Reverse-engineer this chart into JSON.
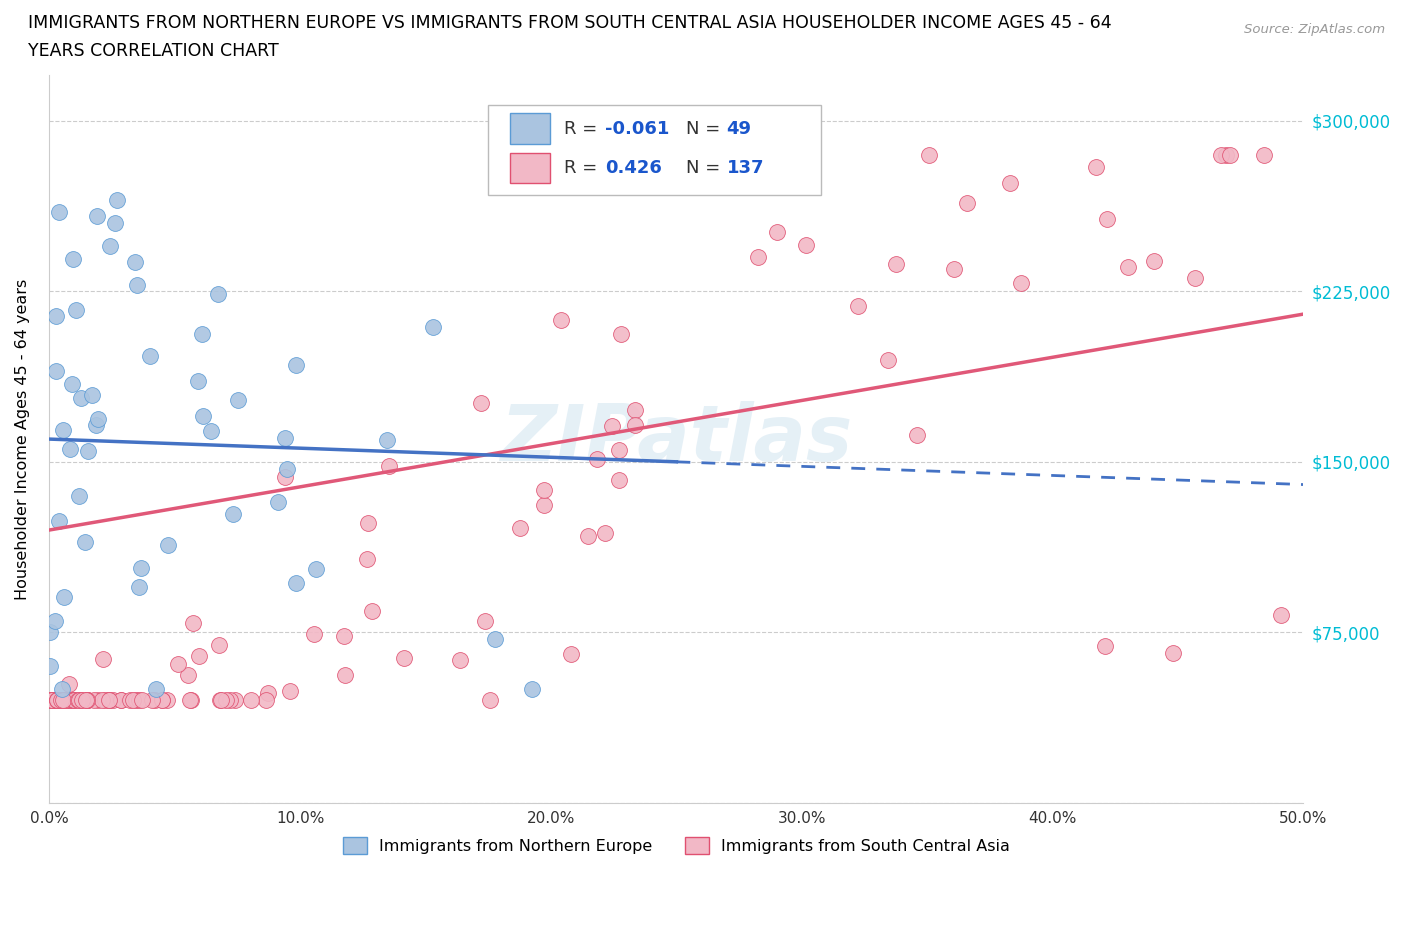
{
  "title_line1": "IMMIGRANTS FROM NORTHERN EUROPE VS IMMIGRANTS FROM SOUTH CENTRAL ASIA HOUSEHOLDER INCOME AGES 45 - 64",
  "title_line2": "YEARS CORRELATION CHART",
  "source_text": "Source: ZipAtlas.com",
  "ylabel": "Householder Income Ages 45 - 64 years",
  "xlim": [
    0.0,
    0.5
  ],
  "ylim": [
    0,
    320000
  ],
  "yticks": [
    0,
    75000,
    150000,
    225000,
    300000
  ],
  "ytick_labels": [
    "",
    "$75,000",
    "$150,000",
    "$225,000",
    "$300,000"
  ],
  "xticks": [
    0.0,
    0.1,
    0.2,
    0.3,
    0.4,
    0.5
  ],
  "xtick_labels": [
    "0.0%",
    "10.0%",
    "20.0%",
    "30.0%",
    "40.0%",
    "50.0%"
  ],
  "blue_color": "#aac4e0",
  "blue_edge_color": "#5b9bd5",
  "pink_color": "#f2b8c6",
  "pink_edge_color": "#e05070",
  "blue_line_color": "#4472c4",
  "pink_line_color": "#e05878",
  "R_blue": -0.061,
  "N_blue": 49,
  "R_pink": 0.426,
  "N_pink": 137,
  "legend_label_blue": "Immigrants from Northern Europe",
  "legend_label_pink": "Immigrants from South Central Asia",
  "watermark": "ZIPatlas",
  "blue_trend_x": [
    0.0,
    0.5
  ],
  "blue_trend_y": [
    160000,
    140000
  ],
  "pink_trend_x": [
    0.0,
    0.5
  ],
  "pink_trend_y": [
    120000,
    215000
  ],
  "blue_trend_solid_end": 0.25,
  "right_tick_color": "#00bcd4"
}
